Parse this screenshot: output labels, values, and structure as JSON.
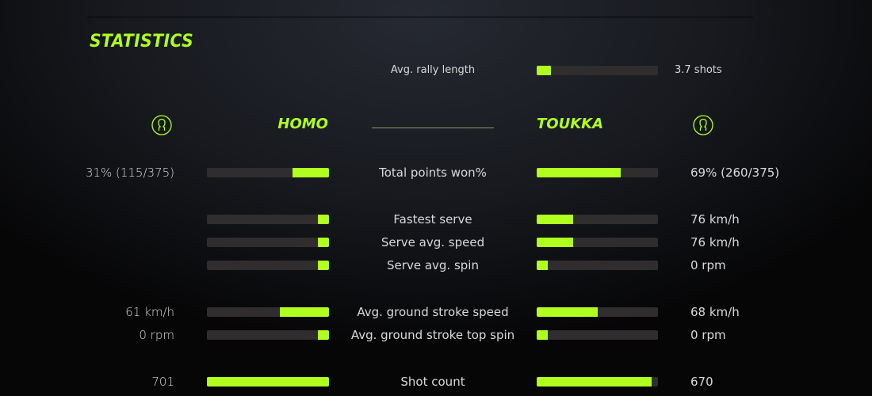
{
  "title": "STATISTICS",
  "accent": "#b0ff1f",
  "rally": {
    "label": "Avg. rally length",
    "value": "3.7 shots",
    "fill": 0.12
  },
  "players": {
    "left": {
      "name": "HOMO",
      "icon": "user-icon"
    },
    "right": {
      "name": "TOUKKA",
      "icon": "user-icon"
    }
  },
  "rows": [
    {
      "label": "Total points won%",
      "left_value": "31% (115/375)",
      "right_value": "69% (260/375)",
      "left_fill": 0.3,
      "right_fill": 0.69
    },
    {
      "label": "Fastest serve",
      "left_value": "",
      "right_value": "76 km/h",
      "left_fill": 0.09,
      "right_fill": 0.3
    },
    {
      "label": "Serve avg. speed",
      "left_value": "",
      "right_value": "76 km/h",
      "left_fill": 0.09,
      "right_fill": 0.3
    },
    {
      "label": "Serve avg. spin",
      "left_value": "",
      "right_value": "0 rpm",
      "left_fill": 0.09,
      "right_fill": 0.09
    },
    {
      "label": "Avg. ground stroke speed",
      "left_value": "61 km/h",
      "right_value": "68 km/h",
      "left_fill": 0.4,
      "right_fill": 0.5
    },
    {
      "label": "Avg. ground stroke top spin",
      "left_value": "0 rpm",
      "right_value": "0 rpm",
      "left_fill": 0.09,
      "right_fill": 0.09
    },
    {
      "label": "Shot count",
      "left_value": "701",
      "right_value": "670",
      "left_fill": 1.0,
      "right_fill": 0.95
    }
  ]
}
